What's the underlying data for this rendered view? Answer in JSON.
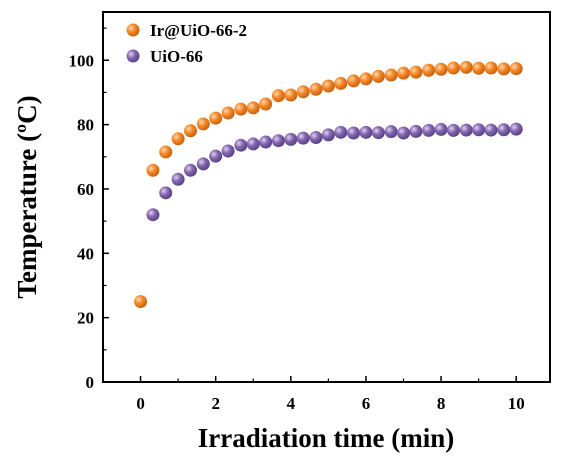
{
  "chart_data": {
    "type": "scatter",
    "xlabel": "Irradiation time (min)",
    "ylabel": "Temperature (ºC)",
    "xlim": [
      -1,
      10.9
    ],
    "ylim": [
      0,
      115
    ],
    "xticks": [
      "0",
      "2",
      "4",
      "6",
      "8",
      "10"
    ],
    "yticks": [
      "0",
      "20",
      "40",
      "60",
      "80",
      "100"
    ],
    "legend_position": "top-left",
    "grid": false,
    "series": [
      {
        "name": "Ir@UiO-66-2",
        "color": "#F5892A",
        "points": [
          [
            0,
            25.0
          ],
          [
            0.33,
            65.8
          ],
          [
            0.67,
            71.5
          ],
          [
            1.0,
            75.6
          ],
          [
            1.33,
            78.1
          ],
          [
            1.67,
            80.2
          ],
          [
            2.0,
            82.0
          ],
          [
            2.33,
            83.6
          ],
          [
            2.67,
            84.8
          ],
          [
            3.0,
            85.2
          ],
          [
            3.33,
            86.4
          ],
          [
            3.67,
            89.0
          ],
          [
            4.0,
            89.2
          ],
          [
            4.33,
            90.2
          ],
          [
            4.67,
            91.0
          ],
          [
            5.0,
            92.0
          ],
          [
            5.33,
            92.8
          ],
          [
            5.67,
            93.6
          ],
          [
            6.0,
            94.2
          ],
          [
            6.33,
            95.0
          ],
          [
            6.67,
            95.4
          ],
          [
            7.0,
            96.0
          ],
          [
            7.33,
            96.3
          ],
          [
            7.67,
            96.9
          ],
          [
            8.0,
            97.2
          ],
          [
            8.33,
            97.6
          ],
          [
            8.67,
            97.8
          ],
          [
            9.0,
            97.5
          ],
          [
            9.33,
            97.6
          ],
          [
            9.67,
            97.3
          ],
          [
            10.0,
            97.4
          ]
        ]
      },
      {
        "name": "UiO-66",
        "color": "#8467B0",
        "points": [
          [
            0.33,
            52.0
          ],
          [
            0.67,
            58.8
          ],
          [
            1.0,
            63.0
          ],
          [
            1.33,
            65.8
          ],
          [
            1.67,
            67.8
          ],
          [
            2.0,
            70.2
          ],
          [
            2.33,
            71.8
          ],
          [
            2.67,
            73.6
          ],
          [
            3.0,
            74.0
          ],
          [
            3.33,
            74.6
          ],
          [
            3.67,
            75.0
          ],
          [
            4.0,
            75.4
          ],
          [
            4.33,
            75.8
          ],
          [
            4.67,
            76.0
          ],
          [
            5.0,
            76.8
          ],
          [
            5.33,
            77.6
          ],
          [
            5.67,
            77.4
          ],
          [
            6.0,
            77.6
          ],
          [
            6.33,
            77.5
          ],
          [
            6.67,
            77.8
          ],
          [
            7.0,
            77.4
          ],
          [
            7.33,
            77.9
          ],
          [
            7.67,
            78.2
          ],
          [
            8.0,
            78.5
          ],
          [
            8.33,
            78.2
          ],
          [
            8.67,
            78.3
          ],
          [
            9.0,
            78.4
          ],
          [
            9.33,
            78.3
          ],
          [
            9.67,
            78.4
          ],
          [
            10.0,
            78.6
          ]
        ]
      }
    ]
  }
}
